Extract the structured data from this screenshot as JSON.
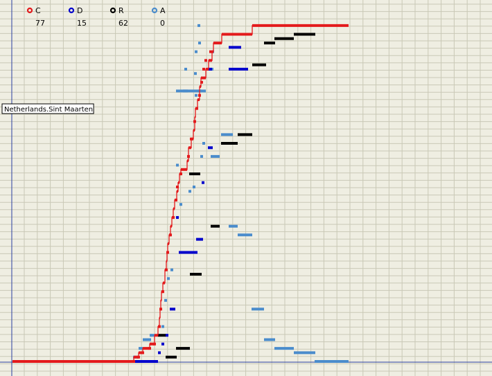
{
  "chart_data": {
    "type": "scatter",
    "title": "",
    "xlabel": "",
    "ylabel": "",
    "grid": true,
    "legend_placement": "top-left",
    "legend": [
      {
        "key": "C",
        "label": "C",
        "count": "77",
        "color": "#e31a1c"
      },
      {
        "key": "D",
        "label": "D",
        "count": "15",
        "color": "#0000cc"
      },
      {
        "key": "R",
        "label": "R",
        "count": "62",
        "color": "#000000"
      },
      {
        "key": "A",
        "label": "A",
        "count": "0",
        "color": "#4a8ccc"
      }
    ],
    "hover_label": "Netherlands.Sint Maarten",
    "series": [
      {
        "key": "C",
        "color": "#e31a1c",
        "segments": [
          [
            0,
            175,
            0
          ],
          [
            175,
            182,
            1
          ],
          [
            182,
            188,
            2
          ],
          [
            188,
            198,
            3
          ],
          [
            198,
            205,
            4
          ],
          [
            205,
            210,
            6
          ],
          [
            210,
            212,
            8
          ],
          [
            212,
            213,
            10
          ],
          [
            213,
            214,
            12
          ],
          [
            214,
            215,
            14
          ],
          [
            215,
            217,
            16
          ],
          [
            217,
            220,
            18
          ],
          [
            220,
            222,
            21
          ],
          [
            222,
            223,
            23
          ],
          [
            223,
            224,
            25
          ],
          [
            224,
            226,
            27
          ],
          [
            226,
            228,
            29
          ],
          [
            228,
            230,
            31
          ],
          [
            230,
            232,
            33
          ],
          [
            232,
            234,
            35
          ],
          [
            234,
            237,
            37
          ],
          [
            237,
            239,
            39
          ],
          [
            239,
            241,
            41
          ],
          [
            241,
            243,
            43
          ],
          [
            243,
            252,
            44
          ],
          [
            252,
            254,
            46
          ],
          [
            254,
            258,
            49
          ],
          [
            258,
            261,
            51
          ],
          [
            261,
            263,
            53
          ],
          [
            263,
            264,
            56
          ],
          [
            264,
            267,
            58
          ],
          [
            267,
            270,
            60
          ],
          [
            270,
            272,
            63
          ],
          [
            272,
            279,
            65
          ],
          [
            279,
            283,
            67
          ],
          [
            283,
            288,
            69
          ],
          [
            288,
            290,
            71
          ],
          [
            290,
            302,
            73
          ],
          [
            302,
            346,
            75
          ],
          [
            346,
            485,
            77
          ]
        ],
        "points": [
          [
            175,
            0
          ],
          [
            182,
            1
          ],
          [
            188,
            2
          ],
          [
            198,
            3
          ],
          [
            205,
            4
          ],
          [
            212,
            8
          ],
          [
            214,
            12
          ],
          [
            217,
            16
          ],
          [
            222,
            21
          ],
          [
            224,
            25
          ],
          [
            228,
            29
          ],
          [
            232,
            33
          ],
          [
            236,
            37
          ],
          [
            238,
            40
          ],
          [
            243,
            43
          ],
          [
            254,
            47
          ],
          [
            258,
            51
          ],
          [
            263,
            55
          ],
          [
            266,
            58
          ],
          [
            270,
            61
          ],
          [
            273,
            64
          ],
          [
            276,
            67
          ],
          [
            279,
            69
          ],
          [
            286,
            71
          ]
        ]
      },
      {
        "key": "D",
        "color": "#0000cc",
        "segments": [
          [
            175,
            210,
            0
          ],
          [
            210,
            214,
            2
          ],
          [
            221,
            225,
            6
          ],
          [
            227,
            235,
            12
          ],
          [
            240,
            267,
            25
          ],
          [
            265,
            275,
            28
          ],
          [
            282,
            289,
            49
          ],
          [
            312,
            340,
            67
          ],
          [
            281,
            288,
            67
          ],
          [
            312,
            330,
            72
          ],
          [
            325,
            346,
            75
          ]
        ],
        "points": [
          [
            217,
            4
          ],
          [
            238,
            33
          ],
          [
            275,
            41
          ]
        ]
      },
      {
        "key": "R",
        "color": "#000000",
        "segments": [
          [
            221,
            237,
            1
          ],
          [
            240,
            256,
            3
          ],
          [
            210,
            222,
            6
          ],
          [
            256,
            273,
            20
          ],
          [
            286,
            299,
            31
          ],
          [
            255,
            271,
            43
          ],
          [
            301,
            325,
            50
          ],
          [
            325,
            346,
            52
          ],
          [
            346,
            366,
            68
          ],
          [
            363,
            379,
            73
          ],
          [
            378,
            406,
            74
          ],
          [
            406,
            437,
            75
          ]
        ],
        "points": [
          [
            238,
            3
          ]
        ]
      },
      {
        "key": "A",
        "color": "#4a8ccc",
        "segments": [
          [
            174,
            182,
            1
          ],
          [
            182,
            188,
            3
          ],
          [
            188,
            200,
            5
          ],
          [
            200,
            206,
            6
          ],
          [
            436,
            485,
            0
          ],
          [
            406,
            437,
            2
          ],
          [
            378,
            406,
            3
          ],
          [
            363,
            379,
            5
          ],
          [
            345,
            363,
            12
          ],
          [
            325,
            346,
            29
          ],
          [
            312,
            325,
            31
          ],
          [
            286,
            299,
            47
          ],
          [
            301,
            312,
            50
          ],
          [
            301,
            318,
            52
          ],
          [
            236,
            253,
            62
          ],
          [
            246,
            273,
            62
          ],
          [
            268,
            279,
            62
          ],
          [
            281,
            290,
            67
          ]
        ],
        "points": [
          [
            200,
            6
          ],
          [
            217,
            8
          ],
          [
            221,
            14
          ],
          [
            225,
            19
          ],
          [
            230,
            21
          ],
          [
            243,
            36
          ],
          [
            256,
            39
          ],
          [
            262,
            40
          ],
          [
            238,
            45
          ],
          [
            273,
            47
          ],
          [
            276,
            50
          ],
          [
            265,
            61
          ],
          [
            264,
            66
          ],
          [
            250,
            67
          ],
          [
            265,
            71
          ],
          [
            289,
            71
          ],
          [
            270,
            73
          ],
          [
            269,
            77
          ]
        ]
      }
    ]
  }
}
